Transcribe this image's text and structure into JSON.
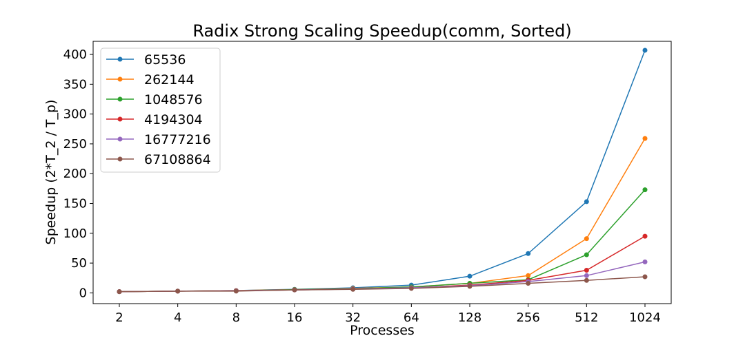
{
  "chart_data": {
    "type": "line",
    "title": "Radix Strong Scaling Speedup(comm, Sorted)",
    "xlabel": "Processes",
    "ylabel": "Speedup (2*T_2 / T_p)",
    "categories": [
      "2",
      "4",
      "8",
      "16",
      "32",
      "64",
      "128",
      "256",
      "512",
      "1024"
    ],
    "yticks": [
      0,
      50,
      100,
      150,
      200,
      250,
      300,
      350,
      400
    ],
    "ylim": [
      -18,
      422
    ],
    "grid": false,
    "legend_position": "top-left",
    "series": [
      {
        "name": "65536",
        "color": "#1f77b4",
        "values": [
          2,
          3,
          4,
          6,
          8.5,
          13,
          28,
          66,
          153,
          407
        ]
      },
      {
        "name": "262144",
        "color": "#ff7f0e",
        "values": [
          2,
          3,
          4,
          5.5,
          7.5,
          10,
          16,
          29,
          91,
          259
        ]
      },
      {
        "name": "1048576",
        "color": "#2ca02c",
        "values": [
          2,
          3,
          3.5,
          5.5,
          7,
          10,
          16,
          22,
          64,
          173
        ]
      },
      {
        "name": "4194304",
        "color": "#d62728",
        "values": [
          2,
          3,
          3.5,
          5,
          6.5,
          8.5,
          13,
          21,
          38,
          95
        ]
      },
      {
        "name": "16777216",
        "color": "#9467bd",
        "values": [
          2,
          3,
          3.5,
          5,
          6.5,
          8.5,
          12,
          19,
          29,
          52
        ]
      },
      {
        "name": "67108864",
        "color": "#8c564b",
        "values": [
          2,
          3,
          3,
          5,
          6,
          7.5,
          11,
          16,
          21,
          27
        ]
      }
    ]
  }
}
